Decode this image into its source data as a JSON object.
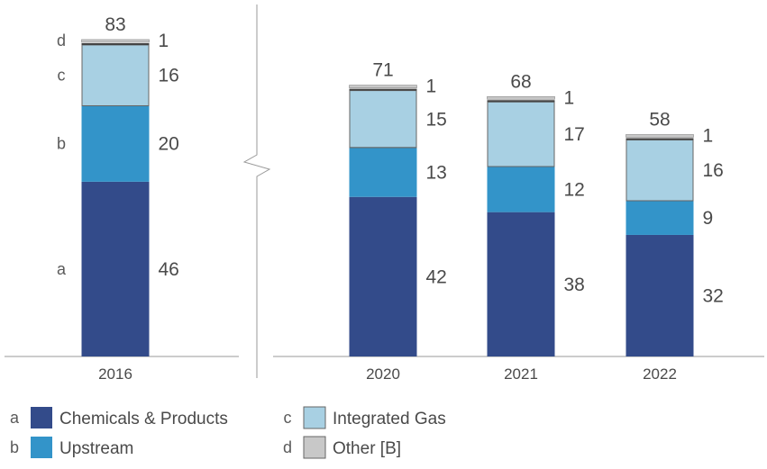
{
  "chart_data": {
    "type": "bar",
    "stacked": true,
    "categories": [
      "2016",
      "2020",
      "2021",
      "2022"
    ],
    "series": [
      {
        "key": "a",
        "name": "Chemicals & Products",
        "color": "#334b8a",
        "values": [
          46,
          42,
          38,
          32
        ]
      },
      {
        "key": "b",
        "name": "Upstream",
        "color": "#3394c9",
        "values": [
          20,
          13,
          12,
          9
        ]
      },
      {
        "key": "c",
        "name": "Integrated Gas",
        "color": "#a8d0e3",
        "values": [
          16,
          15,
          17,
          16
        ]
      },
      {
        "key": "d",
        "name": "Other [B]",
        "color": "#c8c8c8",
        "values": [
          1,
          1,
          1,
          1
        ]
      }
    ],
    "totals": [
      83,
      71,
      68,
      58
    ],
    "axis_break_after": "2016",
    "side_letters_on": "2016",
    "legend_position": "bottom"
  }
}
